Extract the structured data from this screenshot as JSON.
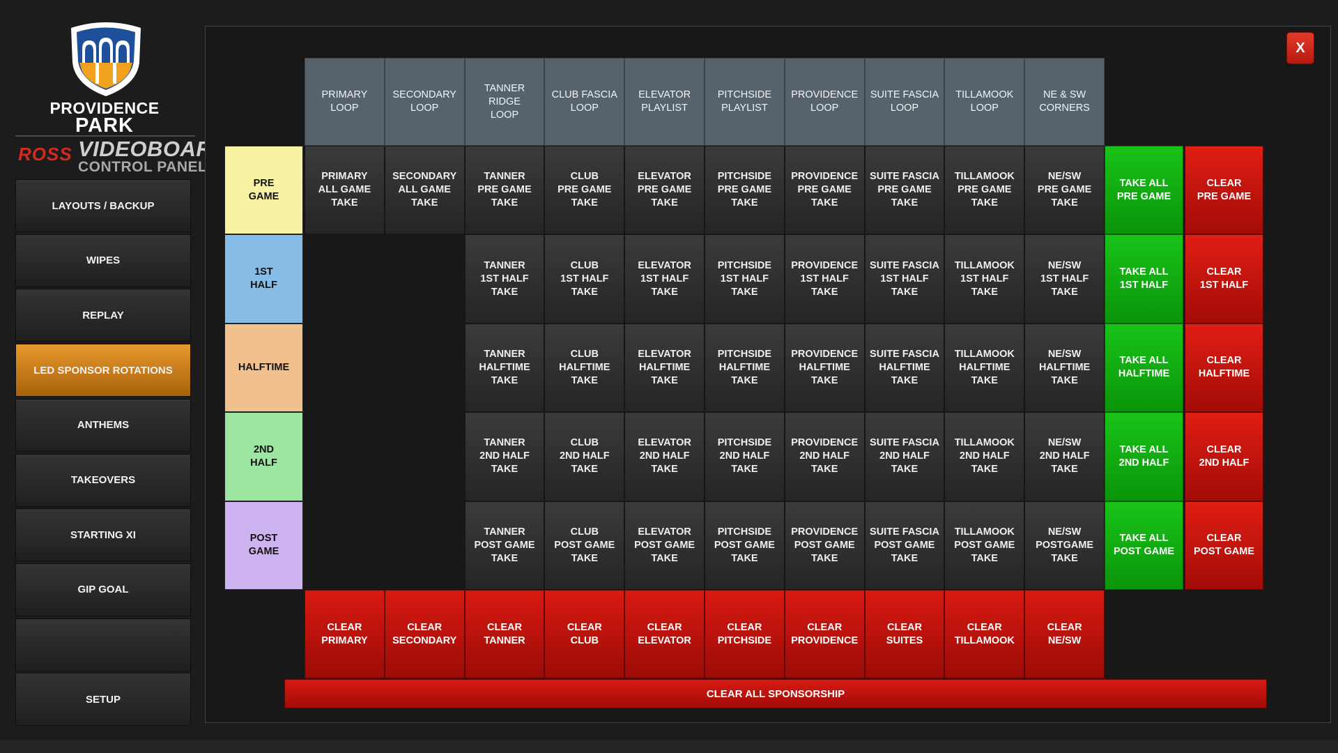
{
  "branding": {
    "park_line1": "PROVIDENCE",
    "park_line2": "PARK",
    "ross": "ROSS",
    "videoboard": "VIDEOBOARD",
    "control_panel": "CONTROL PANEL"
  },
  "sidebar": {
    "items": [
      {
        "label": "LAYOUTS / BACKUP",
        "active": false
      },
      {
        "label": "WIPES",
        "active": false
      },
      {
        "label": "REPLAY",
        "active": false
      },
      {
        "label": "LED SPONSOR ROTATIONS",
        "active": true
      },
      {
        "label": "ANTHEMS",
        "active": false
      },
      {
        "label": "TAKEOVERS",
        "active": false
      },
      {
        "label": "STARTING XI",
        "active": false
      },
      {
        "label": "GIP GOAL",
        "active": false
      },
      {
        "label": "",
        "active": false
      },
      {
        "label": "SETUP",
        "active": false
      }
    ]
  },
  "close_label": "X",
  "grid": {
    "columns": [
      "PRIMARY\nLOOP",
      "SECONDARY\nLOOP",
      "TANNER RIDGE\nLOOP",
      "CLUB FASCIA\nLOOP",
      "ELEVATOR\nPLAYLIST",
      "PITCHSIDE\nPLAYLIST",
      "PROVIDENCE\nLOOP",
      "SUITE FASCIA\nLOOP",
      "TILLAMOOK\nLOOP",
      "NE & SW\nCORNERS"
    ],
    "rows": [
      {
        "label": "PRE\nGAME",
        "color": "#f7f3a3",
        "cells": [
          "PRIMARY\nALL GAME\nTAKE",
          "SECONDARY\nALL GAME\nTAKE",
          "TANNER\nPRE GAME\nTAKE",
          "CLUB\nPRE GAME\nTAKE",
          "ELEVATOR\nPRE GAME\nTAKE",
          "PITCHSIDE\nPRE GAME\nTAKE",
          "PROVIDENCE\nPRE GAME\nTAKE",
          "SUITE FASCIA\nPRE GAME\nTAKE",
          "TILLAMOOK\nPRE GAME\nTAKE",
          "NE/SW\nPRE GAME\nTAKE"
        ],
        "take_all": "TAKE ALL\nPRE GAME",
        "clear": "CLEAR\nPRE GAME"
      },
      {
        "label": "1ST\nHALF",
        "color": "#86bce6",
        "cells": [
          "",
          "",
          "TANNER\n1ST HALF\nTAKE",
          "CLUB\n1ST HALF\nTAKE",
          "ELEVATOR\n1ST HALF\nTAKE",
          "PITCHSIDE\n1ST HALF\nTAKE",
          "PROVIDENCE\n1ST HALF\nTAKE",
          "SUITE FASCIA\n1ST HALF\nTAKE",
          "TILLAMOOK\n1ST HALF\nTAKE",
          "NE/SW\n1ST HALF\nTAKE"
        ],
        "take_all": "TAKE ALL\n1ST HALF",
        "clear": "CLEAR\n1ST HALF"
      },
      {
        "label": "HALFTIME",
        "color": "#f1c08c",
        "cells": [
          "",
          "",
          "TANNER\nHALFTIME\nTAKE",
          "CLUB\nHALFTIME\nTAKE",
          "ELEVATOR\nHALFTIME\nTAKE",
          "PITCHSIDE\nHALFTIME\nTAKE",
          "PROVIDENCE\nHALFTIME\nTAKE",
          "SUITE FASCIA\nHALFTIME\nTAKE",
          "TILLAMOOK\nHALFTIME\nTAKE",
          "NE/SW\nHALFTIME\nTAKE"
        ],
        "take_all": "TAKE ALL\nHALFTIME",
        "clear": "CLEAR\nHALFTIME"
      },
      {
        "label": "2ND\nHALF",
        "color": "#9de6a2",
        "cells": [
          "",
          "",
          "TANNER\n2ND HALF\nTAKE",
          "CLUB\n2ND HALF\nTAKE",
          "ELEVATOR\n2ND HALF\nTAKE",
          "PITCHSIDE\n2ND HALF\nTAKE",
          "PROVIDENCE\n2ND HALF\nTAKE",
          "SUITE FASCIA\n2ND HALF\nTAKE",
          "TILLAMOOK\n2ND HALF\nTAKE",
          "NE/SW\n2ND HALF\nTAKE"
        ],
        "take_all": "TAKE ALL\n2ND HALF",
        "clear": "CLEAR\n2ND HALF"
      },
      {
        "label": "POST\nGAME",
        "color": "#cdb3ef",
        "cells": [
          "",
          "",
          "TANNER\nPOST GAME\nTAKE",
          "CLUB\nPOST GAME\nTAKE",
          "ELEVATOR\nPOST GAME\nTAKE",
          "PITCHSIDE\nPOST GAME\nTAKE",
          "PROVIDENCE\nPOST GAME\nTAKE",
          "SUITE FASCIA\nPOST GAME\nTAKE",
          "TILLAMOOK\nPOST GAME\nTAKE",
          "NE/SW\nPOSTGAME\nTAKE"
        ],
        "take_all": "TAKE ALL\nPOST GAME",
        "clear": "CLEAR\nPOST GAME"
      }
    ],
    "clear_columns": [
      "CLEAR\nPRIMARY",
      "CLEAR\nSECONDARY",
      "CLEAR\nTANNER",
      "CLEAR\nCLUB",
      "CLEAR\nELEVATOR",
      "CLEAR\nPITCHSIDE",
      "CLEAR\nPROVIDENCE",
      "CLEAR\nSUITES",
      "CLEAR\nTILLAMOOK",
      "CLEAR\nNE/SW"
    ],
    "clear_all": "CLEAR ALL SPONSORSHIP"
  }
}
